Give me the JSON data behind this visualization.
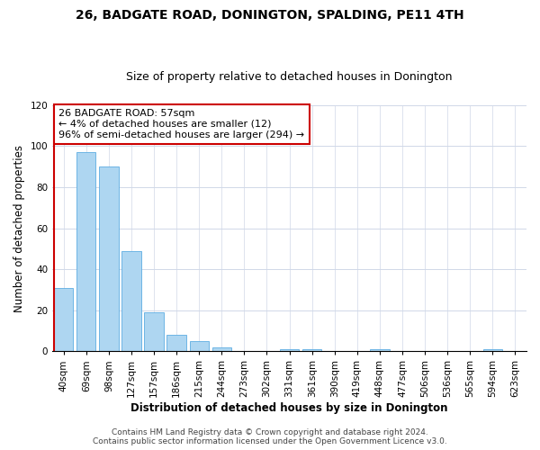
{
  "title": "26, BADGATE ROAD, DONINGTON, SPALDING, PE11 4TH",
  "subtitle": "Size of property relative to detached houses in Donington",
  "xlabel": "Distribution of detached houses by size in Donington",
  "ylabel": "Number of detached properties",
  "bar_color": "#aed6f1",
  "bar_edge_color": "#5dade2",
  "categories": [
    "40sqm",
    "69sqm",
    "98sqm",
    "127sqm",
    "157sqm",
    "186sqm",
    "215sqm",
    "244sqm",
    "273sqm",
    "302sqm",
    "331sqm",
    "361sqm",
    "390sqm",
    "419sqm",
    "448sqm",
    "477sqm",
    "506sqm",
    "536sqm",
    "565sqm",
    "594sqm",
    "623sqm"
  ],
  "values": [
    31,
    97,
    90,
    49,
    19,
    8,
    5,
    2,
    0,
    0,
    1,
    1,
    0,
    0,
    1,
    0,
    0,
    0,
    0,
    1,
    0
  ],
  "ylim": [
    0,
    120
  ],
  "yticks": [
    0,
    20,
    40,
    60,
    80,
    100,
    120
  ],
  "annotation_line1": "26 BADGATE ROAD: 57sqm",
  "annotation_line2": "← 4% of detached houses are smaller (12)",
  "annotation_line3": "96% of semi-detached houses are larger (294) →",
  "annotation_box_color": "#ffffff",
  "annotation_box_edge_color": "#cc0000",
  "vline_color": "#cc0000",
  "footer_line1": "Contains HM Land Registry data © Crown copyright and database right 2024.",
  "footer_line2": "Contains public sector information licensed under the Open Government Licence v3.0.",
  "background_color": "#ffffff",
  "grid_color": "#d0d8e8",
  "title_fontsize": 10,
  "subtitle_fontsize": 9,
  "axis_label_fontsize": 8.5,
  "tick_fontsize": 7.5,
  "annotation_fontsize": 8,
  "footer_fontsize": 6.5
}
